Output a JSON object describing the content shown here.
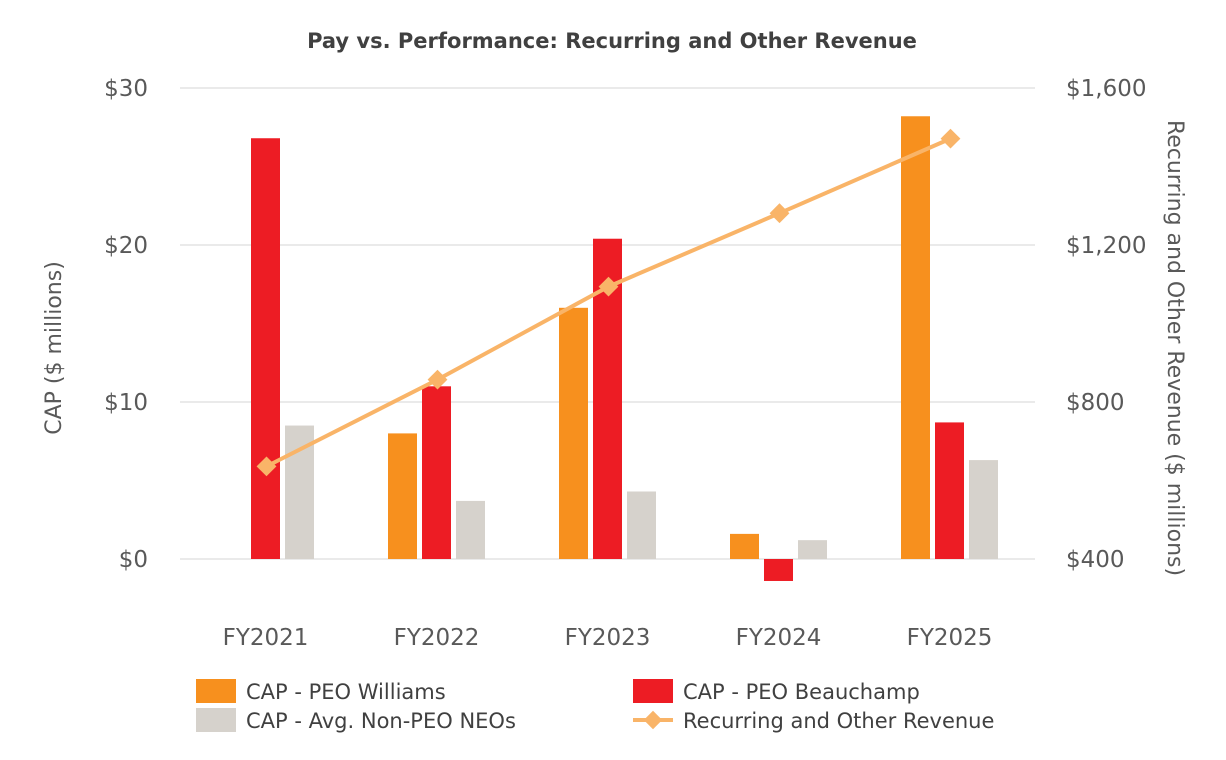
{
  "chart_data": {
    "type": "bar",
    "title": "Pay vs. Performance: Recurring and Other Revenue",
    "categories": [
      "FY2021",
      "FY2022",
      "FY2023",
      "FY2024",
      "FY2025"
    ],
    "ylabel": "CAP ($ millions)",
    "y2label": "Recurring and Other Revenue ($ millions)",
    "ylim": [
      0,
      30
    ],
    "y2lim": [
      400,
      1600
    ],
    "y_ticks": [
      "$0",
      "$10",
      "$20",
      "$30"
    ],
    "y2_ticks": [
      "$400",
      "$800",
      "$1,200",
      "$1,600"
    ],
    "y_tick_values": [
      0,
      10,
      20,
      30
    ],
    "y2_tick_values": [
      400,
      800,
      1200,
      1600
    ],
    "grid": true,
    "legend_position": "bottom",
    "series": [
      {
        "name": "CAP - PEO Williams",
        "type": "bar",
        "axis": "left",
        "color": "#f7901e",
        "values": [
          null,
          8.0,
          16.0,
          1.6,
          28.2
        ]
      },
      {
        "name": "CAP - PEO Beauchamp",
        "type": "bar",
        "axis": "left",
        "color": "#ed1c24",
        "values": [
          26.8,
          11.0,
          20.4,
          -1.4,
          8.7
        ]
      },
      {
        "name": "CAP - Avg. Non-PEO NEOs",
        "type": "bar",
        "axis": "left",
        "color": "#d6d2cc",
        "values": [
          8.5,
          3.7,
          4.3,
          1.2,
          6.3
        ]
      },
      {
        "name": "Recurring and Other Revenue",
        "type": "line",
        "axis": "right",
        "color": "#f9b468",
        "marker": "diamond",
        "values": [
          636,
          857,
          1094,
          1281,
          1471
        ]
      }
    ]
  }
}
